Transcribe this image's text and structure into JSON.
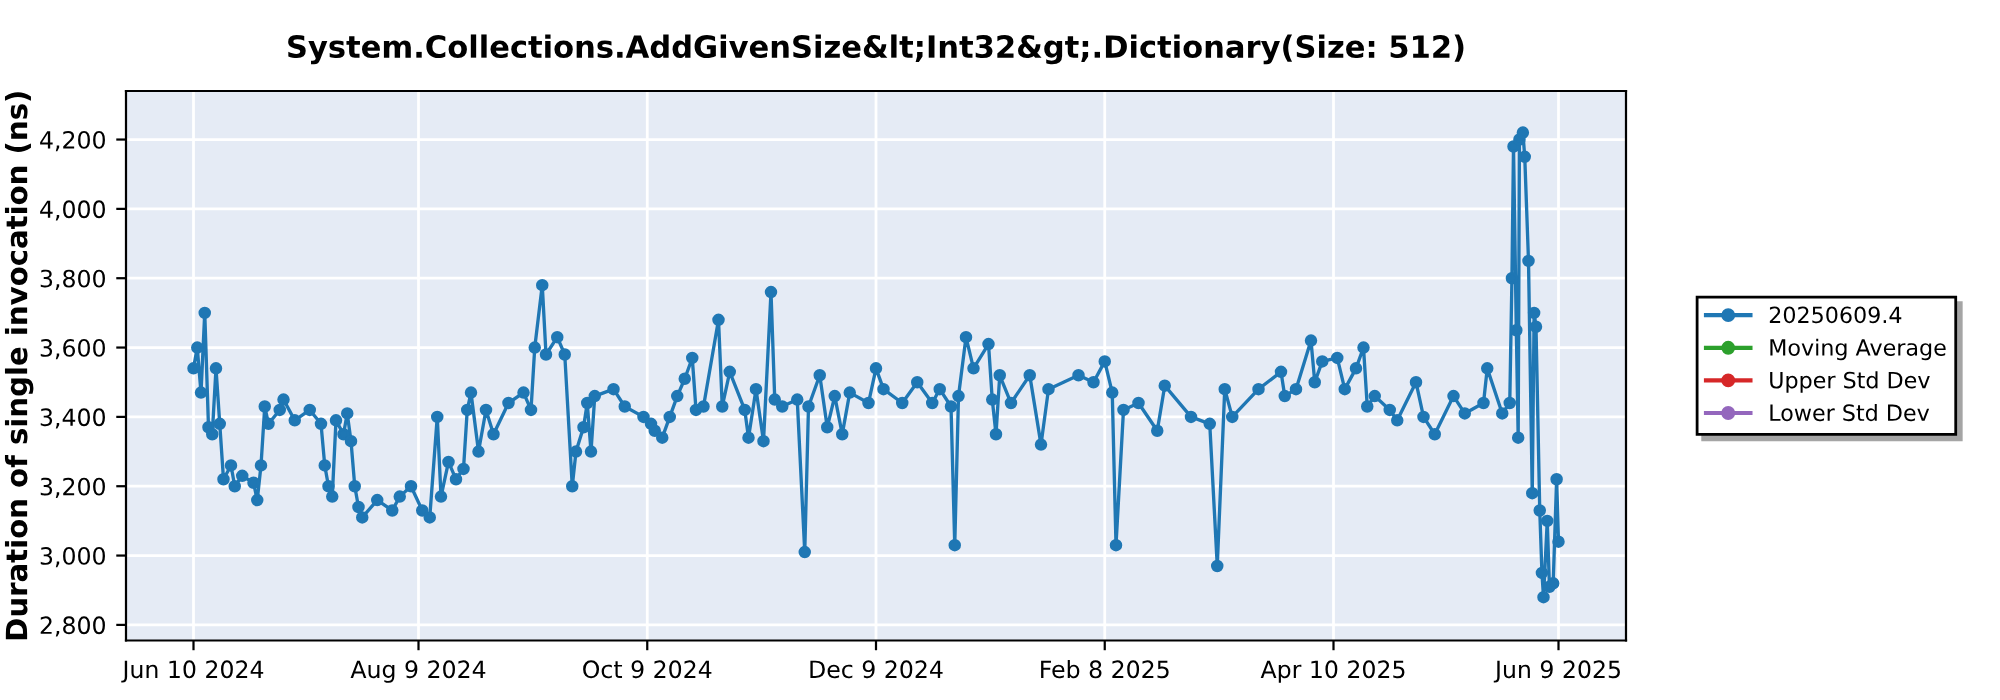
{
  "chart_data": {
    "type": "line",
    "title": "System.Collections.AddGivenSize&lt;Int32&gt;.Dictionary(Size: 512)",
    "ylabel": "Duration of single invocation (ns)",
    "xlim": [
      "2024-05-23",
      "2025-06-27"
    ],
    "xticks": [
      {
        "value": "2024-06-10",
        "label": "Jun 10 2024"
      },
      {
        "value": "2024-08-09",
        "label": "Aug 9 2024"
      },
      {
        "value": "2024-10-09",
        "label": "Oct 9 2024"
      },
      {
        "value": "2024-12-09",
        "label": "Dec 9 2024"
      },
      {
        "value": "2025-02-08",
        "label": "Feb 8 2025"
      },
      {
        "value": "2025-04-10",
        "label": "Apr 10 2025"
      },
      {
        "value": "2025-06-09",
        "label": "Jun 9 2025"
      }
    ],
    "ylim": [
      2755,
      4340
    ],
    "yticks": [
      {
        "value": 2800,
        "label": "2,800"
      },
      {
        "value": 3000,
        "label": "3,000"
      },
      {
        "value": 3200,
        "label": "3,200"
      },
      {
        "value": 3400,
        "label": "3,400"
      },
      {
        "value": 3600,
        "label": "3,600"
      },
      {
        "value": 3800,
        "label": "3,800"
      },
      {
        "value": 4000,
        "label": "4,000"
      },
      {
        "value": 4200,
        "label": "4,200"
      }
    ],
    "grid": true,
    "legend": "right",
    "marker": "circle",
    "line_style": "solid",
    "series": [
      {
        "name": "20250609.4",
        "color": "#1f77b4",
        "x": [
          "2024-06-10",
          "2024-06-11",
          "2024-06-12",
          "2024-06-13",
          "2024-06-14",
          "2024-06-15",
          "2024-06-16",
          "2024-06-17",
          "2024-06-18",
          "2024-06-20",
          "2024-06-21",
          "2024-06-23",
          "2024-06-26",
          "2024-06-27",
          "2024-06-28",
          "2024-06-29",
          "2024-06-30",
          "2024-07-03",
          "2024-07-04",
          "2024-07-07",
          "2024-07-11",
          "2024-07-14",
          "2024-07-15",
          "2024-07-16",
          "2024-07-17",
          "2024-07-18",
          "2024-07-20",
          "2024-07-21",
          "2024-07-22",
          "2024-07-23",
          "2024-07-24",
          "2024-07-25",
          "2024-07-29",
          "2024-08-02",
          "2024-08-04",
          "2024-08-07",
          "2024-08-10",
          "2024-08-12",
          "2024-08-14",
          "2024-08-15",
          "2024-08-17",
          "2024-08-19",
          "2024-08-21",
          "2024-08-22",
          "2024-08-23",
          "2024-08-25",
          "2024-08-27",
          "2024-08-29",
          "2024-09-02",
          "2024-09-06",
          "2024-09-08",
          "2024-09-09",
          "2024-09-11",
          "2024-09-12",
          "2024-09-15",
          "2024-09-17",
          "2024-09-19",
          "2024-09-20",
          "2024-09-22",
          "2024-09-23",
          "2024-09-24",
          "2024-09-25",
          "2024-09-30",
          "2024-10-03",
          "2024-10-08",
          "2024-10-10",
          "2024-10-11",
          "2024-10-13",
          "2024-10-15",
          "2024-10-17",
          "2024-10-19",
          "2024-10-21",
          "2024-10-22",
          "2024-10-24",
          "2024-10-28",
          "2024-10-29",
          "2024-10-31",
          "2024-11-04",
          "2024-11-05",
          "2024-11-07",
          "2024-11-09",
          "2024-11-11",
          "2024-11-12",
          "2024-11-14",
          "2024-11-18",
          "2024-11-20",
          "2024-11-21",
          "2024-11-24",
          "2024-11-26",
          "2024-11-28",
          "2024-11-30",
          "2024-12-02",
          "2024-12-07",
          "2024-12-09",
          "2024-12-11",
          "2024-12-16",
          "2024-12-20",
          "2024-12-24",
          "2024-12-26",
          "2024-12-29",
          "2024-12-30",
          "2024-12-31",
          "2025-01-02",
          "2025-01-04",
          "2025-01-08",
          "2025-01-09",
          "2025-01-10",
          "2025-01-11",
          "2025-01-14",
          "2025-01-19",
          "2025-01-22",
          "2025-01-24",
          "2025-02-01",
          "2025-02-05",
          "2025-02-08",
          "2025-02-10",
          "2025-02-11",
          "2025-02-13",
          "2025-02-17",
          "2025-02-22",
          "2025-02-24",
          "2025-03-03",
          "2025-03-08",
          "2025-03-10",
          "2025-03-12",
          "2025-03-14",
          "2025-03-21",
          "2025-03-27",
          "2025-03-28",
          "2025-03-31",
          "2025-04-04",
          "2025-04-05",
          "2025-04-07",
          "2025-04-11",
          "2025-04-13",
          "2025-04-16",
          "2025-04-18",
          "2025-04-19",
          "2025-04-21",
          "2025-04-25",
          "2025-04-27",
          "2025-05-02",
          "2025-05-04",
          "2025-05-07",
          "2025-05-12",
          "2025-05-15",
          "2025-05-20",
          "2025-05-21",
          "2025-05-25",
          "2025-05-27T00:00",
          "2025-05-27T14:00",
          "2025-05-28T00:00",
          "2025-05-28T18:00",
          "2025-05-29T06:00",
          "2025-05-29T14:00",
          "2025-05-30T12:00",
          "2025-05-31T00:00",
          "2025-06-01T00:00",
          "2025-06-02T00:00",
          "2025-06-02T12:00",
          "2025-06-03T00:00",
          "2025-06-04T00:00",
          "2025-06-04T14:00",
          "2025-06-05T00:00",
          "2025-06-06T00:00",
          "2025-06-06T14:00",
          "2025-06-07T14:00",
          "2025-06-08T12:00",
          "2025-06-09T00:00"
        ],
        "values": [
          3540,
          3600,
          3470,
          3700,
          3370,
          3350,
          3540,
          3380,
          3220,
          3260,
          3200,
          3230,
          3210,
          3160,
          3260,
          3430,
          3380,
          3420,
          3450,
          3390,
          3420,
          3380,
          3260,
          3200,
          3170,
          3390,
          3350,
          3410,
          3330,
          3200,
          3140,
          3110,
          3160,
          3130,
          3170,
          3200,
          3130,
          3110,
          3400,
          3170,
          3270,
          3220,
          3250,
          3420,
          3470,
          3300,
          3420,
          3350,
          3440,
          3470,
          3420,
          3600,
          3780,
          3580,
          3630,
          3580,
          3200,
          3300,
          3370,
          3440,
          3300,
          3460,
          3480,
          3430,
          3400,
          3380,
          3360,
          3340,
          3400,
          3460,
          3510,
          3570,
          3420,
          3430,
          3680,
          3430,
          3530,
          3420,
          3340,
          3480,
          3330,
          3760,
          3450,
          3430,
          3450,
          3010,
          3430,
          3520,
          3370,
          3460,
          3350,
          3470,
          3440,
          3540,
          3480,
          3440,
          3500,
          3440,
          3480,
          3430,
          3030,
          3460,
          3630,
          3540,
          3610,
          3450,
          3350,
          3520,
          3440,
          3520,
          3320,
          3480,
          3520,
          3500,
          3560,
          3470,
          3030,
          3420,
          3440,
          3360,
          3490,
          3400,
          3380,
          2970,
          3480,
          3400,
          3480,
          3530,
          3460,
          3480,
          3620,
          3500,
          3560,
          3570,
          3480,
          3540,
          3600,
          3430,
          3460,
          3420,
          3390,
          3500,
          3400,
          3350,
          3460,
          3410,
          3440,
          3540,
          3410,
          3440,
          3800,
          4180,
          3650,
          3340,
          4200,
          4220,
          4150,
          3850,
          3180,
          3700,
          3660,
          3130,
          2950,
          2880,
          3100,
          2910,
          2920,
          3220,
          3040
        ]
      },
      {
        "name": "Moving Average",
        "color": "#2ca02c"
      },
      {
        "name": "Upper Std Dev",
        "color": "#d62728"
      },
      {
        "name": "Lower Std Dev",
        "color": "#9467bd"
      }
    ]
  }
}
